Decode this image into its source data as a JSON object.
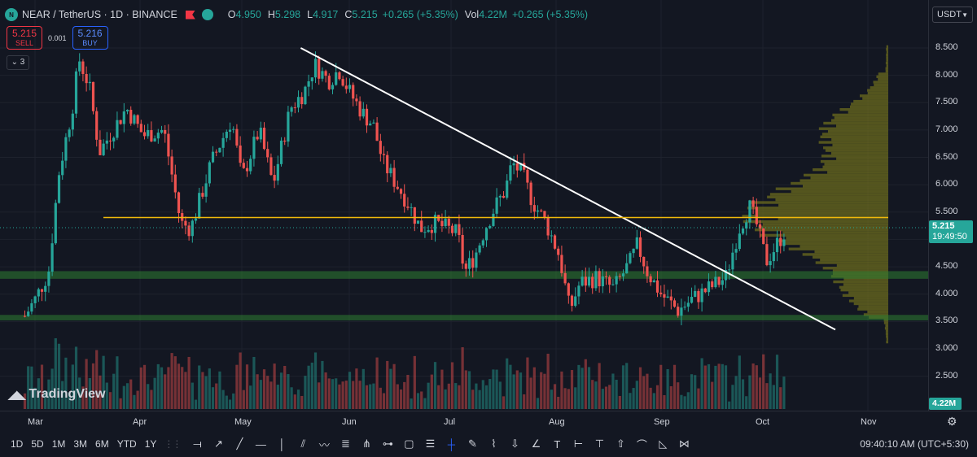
{
  "legend": {
    "coin_glyph": "N",
    "symbol": "NEAR / TetherUS · 1D · BINANCE",
    "o_label": "O",
    "o": "4.950",
    "h_label": "H",
    "h": "5.298",
    "l_label": "L",
    "l": "4.917",
    "c_label": "C",
    "c": "5.215",
    "change": "+0.265 (+5.35%)",
    "vol_label": "Vol",
    "vol": "4.22M",
    "vol_change": "+0.265 (+5.35%)"
  },
  "trade": {
    "sell_price": "5.215",
    "sell_label": "SELL",
    "spread": "0.001",
    "buy_price": "5.216",
    "buy_label": "BUY"
  },
  "collapse_label": "⌄ 3",
  "watermark": "TradingView",
  "currency": "USDT",
  "price_ticks": [
    "8.500",
    "8.000",
    "7.500",
    "7.000",
    "6.500",
    "6.000",
    "5.500",
    "5.000",
    "4.500",
    "4.000",
    "3.500",
    "3.000",
    "2.500"
  ],
  "current_price": "5.215",
  "countdown": "19:49:50",
  "volume_badge": "4.22M",
  "months": [
    "Mar",
    "Apr",
    "May",
    "Jun",
    "Jul",
    "Aug",
    "Sep",
    "Oct",
    "Nov"
  ],
  "timeframes": [
    "1D",
    "5D",
    "1M",
    "3M",
    "6M",
    "YTD",
    "1Y"
  ],
  "tools": [
    "ray-icon",
    "arrow-line-icon",
    "trend-line-icon",
    "horizontal-line-icon",
    "vertical-line-icon",
    "parallel-channel-icon",
    "polyline-icon",
    "fib-icon",
    "pitchfork-icon",
    "gann-icon",
    "rectangle-icon",
    "long-position-icon",
    "crosshair-icon",
    "brush-icon",
    "path-icon",
    "arrow-down-icon",
    "angle-icon",
    "text-icon",
    "date-range-icon",
    "price-note-icon",
    "arrow-up-icon",
    "curve-icon",
    "triangle-icon",
    "pattern-icon"
  ],
  "clock": "09:40:10 AM (UTC+5:30)",
  "colors": {
    "up": "#26a69a",
    "down": "#ef5350",
    "background": "#131722",
    "resistance": "#f0b90b",
    "support_zone": "#2e7d32",
    "profile": "#6b6b1e"
  },
  "chart_data": {
    "type": "candlestick",
    "symbol": "NEAR/USDT",
    "interval": "1D",
    "ylim": [
      2.2,
      8.7
    ],
    "x_months": [
      "Mar",
      "Apr",
      "May",
      "Jun",
      "Jul",
      "Aug",
      "Sep",
      "Oct",
      "Nov"
    ],
    "ohlc_anchor_path": [
      {
        "x": "Feb 26",
        "close": 3.6
      },
      {
        "x": "Mar 1",
        "close": 3.9
      },
      {
        "x": "Mar 5",
        "close": 4.4
      },
      {
        "x": "Mar 8",
        "close": 6.2
      },
      {
        "x": "Mar 12",
        "close": 7.4
      },
      {
        "x": "Mar 14",
        "close": 8.3
      },
      {
        "x": "Mar 17",
        "close": 7.8
      },
      {
        "x": "Mar 20",
        "close": 6.6
      },
      {
        "x": "Mar 25",
        "close": 7.1
      },
      {
        "x": "Mar 28",
        "close": 7.4
      },
      {
        "x": "Apr 2",
        "close": 6.9
      },
      {
        "x": "Apr 8",
        "close": 7.0
      },
      {
        "x": "Apr 13",
        "close": 5.3
      },
      {
        "x": "Apr 16",
        "close": 5.2
      },
      {
        "x": "Apr 22",
        "close": 6.4
      },
      {
        "x": "Apr 28",
        "close": 7.2
      },
      {
        "x": "May 1",
        "close": 6.1
      },
      {
        "x": "May 6",
        "close": 7.0
      },
      {
        "x": "May 10",
        "close": 6.0
      },
      {
        "x": "May 15",
        "close": 7.4
      },
      {
        "x": "May 19",
        "close": 7.7
      },
      {
        "x": "May 22",
        "close": 8.2
      },
      {
        "x": "May 26",
        "close": 7.9
      },
      {
        "x": "May 29",
        "close": 8.1
      },
      {
        "x": "Jun 1",
        "close": 7.7
      },
      {
        "x": "Jun 5",
        "close": 7.3
      },
      {
        "x": "Jun 8",
        "close": 7.1
      },
      {
        "x": "Jun 11",
        "close": 6.4
      },
      {
        "x": "Jun 15",
        "close": 6.0
      },
      {
        "x": "Jun 18",
        "close": 5.7
      },
      {
        "x": "Jun 22",
        "close": 5.2
      },
      {
        "x": "Jun 26",
        "close": 5.3
      },
      {
        "x": "Jun 30",
        "close": 5.2
      },
      {
        "x": "Jul 3",
        "close": 5.1
      },
      {
        "x": "Jul 5",
        "close": 4.4
      },
      {
        "x": "Jul 8",
        "close": 4.7
      },
      {
        "x": "Jul 11",
        "close": 5.2
      },
      {
        "x": "Jul 14",
        "close": 5.6
      },
      {
        "x": "Jul 17",
        "close": 5.9
      },
      {
        "x": "Jul 19",
        "close": 6.4
      },
      {
        "x": "Jul 22",
        "close": 6.2
      },
      {
        "x": "Jul 25",
        "close": 5.7
      },
      {
        "x": "Jul 29",
        "close": 5.3
      },
      {
        "x": "Aug 2",
        "close": 4.7
      },
      {
        "x": "Aug 5",
        "close": 3.7
      },
      {
        "x": "Aug 8",
        "close": 4.2
      },
      {
        "x": "Aug 13",
        "close": 4.3
      },
      {
        "x": "Aug 18",
        "close": 4.1
      },
      {
        "x": "Aug 23",
        "close": 4.6
      },
      {
        "x": "Aug 25",
        "close": 4.9
      },
      {
        "x": "Aug 28",
        "close": 4.4
      },
      {
        "x": "Sep 1",
        "close": 4.0
      },
      {
        "x": "Sep 6",
        "close": 3.7
      },
      {
        "x": "Sep 10",
        "close": 3.9
      },
      {
        "x": "Sep 15",
        "close": 4.1
      },
      {
        "x": "Sep 20",
        "close": 4.3
      },
      {
        "x": "Sep 24",
        "close": 5.2
      },
      {
        "x": "Sep 27",
        "close": 5.6
      },
      {
        "x": "Sep 29",
        "close": 5.3
      },
      {
        "x": "Oct 2",
        "close": 4.6
      },
      {
        "x": "Oct 5",
        "close": 4.9
      },
      {
        "x": "Oct 8",
        "close": 5.2
      }
    ],
    "trendline": {
      "from": {
        "x": "May 18",
        "y": 8.5
      },
      "to": {
        "x": "Nov 1",
        "y": 3.35
      }
    },
    "resistance_level": 5.4,
    "support_zones": [
      [
        4.28,
        4.42
      ],
      [
        3.52,
        3.62
      ]
    ],
    "volume_profile": "right-anchored, POC near 5.4"
  }
}
